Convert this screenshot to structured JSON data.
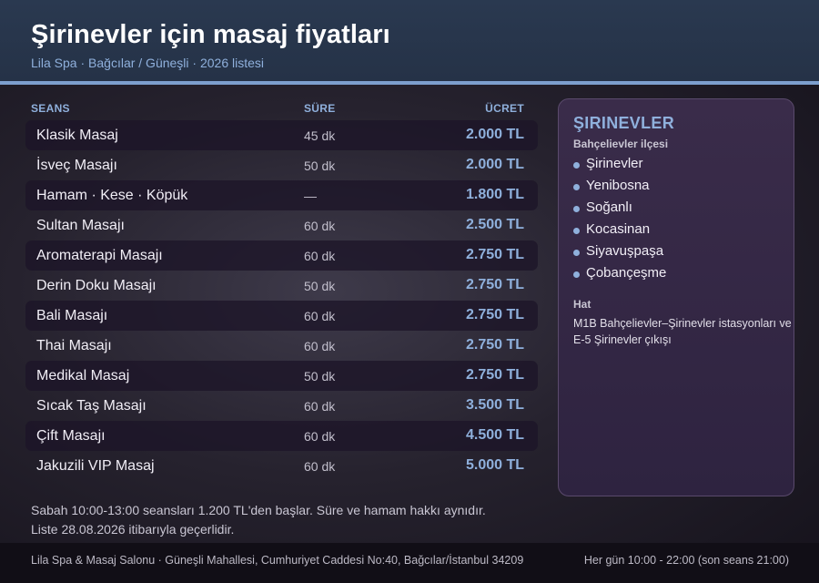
{
  "header": {
    "title": "Şirinevler için masaj fiyatları",
    "subtitle": "Lila Spa · Bağcılar / Güneşli · 2026 listesi"
  },
  "table": {
    "headers": {
      "service": "SEANS",
      "duration": "SÜRE",
      "price": "ÜCRET"
    },
    "rows": [
      {
        "name": "Klasik Masaj",
        "duration": "45 dk",
        "price": "2.000 TL"
      },
      {
        "name": "İsveç Masajı",
        "duration": "50 dk",
        "price": "2.000 TL"
      },
      {
        "name": "Hamam · Kese · Köpük",
        "duration": "—",
        "price": "1.800 TL"
      },
      {
        "name": "Sultan Masajı",
        "duration": "60 dk",
        "price": "2.500 TL"
      },
      {
        "name": "Aromaterapi Masajı",
        "duration": "60 dk",
        "price": "2.750 TL"
      },
      {
        "name": "Derin Doku Masajı",
        "duration": "50 dk",
        "price": "2.750 TL"
      },
      {
        "name": "Bali Masajı",
        "duration": "60 dk",
        "price": "2.750 TL"
      },
      {
        "name": "Thai Masajı",
        "duration": "60 dk",
        "price": "2.750 TL"
      },
      {
        "name": "Medikal Masaj",
        "duration": "50 dk",
        "price": "2.750 TL"
      },
      {
        "name": "Sıcak Taş Masajı",
        "duration": "60 dk",
        "price": "3.500 TL"
      },
      {
        "name": "Çift Masajı",
        "duration": "60 dk",
        "price": "4.500 TL"
      },
      {
        "name": "Jakuzili VIP Masaj",
        "duration": "60 dk",
        "price": "5.000 TL"
      }
    ]
  },
  "notes": {
    "line1": "Sabah 10:00-13:00 seansları 1.200 TL'den başlar. Süre ve hamam hakkı aynıdır.",
    "line2": "Liste 28.08.2026 itibarıyla geçerlidir."
  },
  "panel": {
    "title": "ŞIRINEVLER",
    "district": "Bahçelievler ilçesi",
    "neighborhoods": [
      "Şirinevler",
      "Yenibosna",
      "Soğanlı",
      "Kocasinan",
      "Siyavuşpaşa",
      "Çobançeşme"
    ],
    "transit_label": "Hat",
    "transit_text": "M1B Bahçelievler–Şirinevler istasyonları ve E-5 Şirinevler çıkışı"
  },
  "footer": {
    "address": "Lila Spa & Masaj Salonu · Güneşli Mahallesi, Cumhuriyet Caddesi No:40, Bağcılar/İstanbul 34209",
    "hours": "Her gün 10:00 - 22:00 (son seans 21:00)"
  },
  "colors": {
    "accent": "#8fb0dc",
    "header_bg": "#2a3950",
    "rule": "#7d9fce",
    "panel_bg": "#3a2c4a",
    "footer_bg": "#110e16"
  },
  "icons": {
    "list_bullet": "bullet-dot-icon"
  }
}
